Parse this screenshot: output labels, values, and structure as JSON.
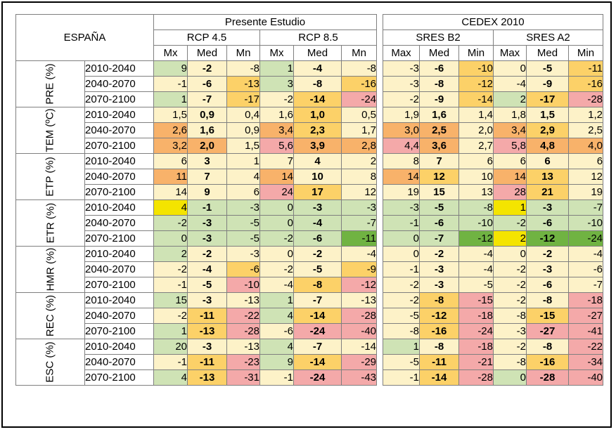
{
  "region_label": "ESPAÑA",
  "study_label": "Presente Estudio",
  "cedex_label": "CEDEX 2010",
  "scenarios_a": [
    "RCP 4.5",
    "RCP 8.5"
  ],
  "scenarios_b": [
    "SRES B2",
    "SRES A2"
  ],
  "subheaders_a": [
    "Mx",
    "Med",
    "Mn",
    "Mx",
    "Med",
    "Mn"
  ],
  "subheaders_b": [
    "Max",
    "Med",
    "Min",
    "Max",
    "Med",
    "Min"
  ],
  "groups": [
    {
      "label": "PRE (%)",
      "rows": [
        {
          "period": "2010-2040",
          "a": [
            "9",
            "-2",
            "-8",
            "1",
            "-4",
            "-8"
          ],
          "b": [
            "-3",
            "-6",
            "-10",
            "0",
            "-5",
            "-11"
          ]
        },
        {
          "period": "2040-2070",
          "a": [
            "-1",
            "-6",
            "-13",
            "3",
            "-8",
            "-16"
          ],
          "b": [
            "-3",
            "-8",
            "-12",
            "-4",
            "-9",
            "-16"
          ]
        },
        {
          "period": "2070-2100",
          "a": [
            "1",
            "-7",
            "-17",
            "-2",
            "-14",
            "-24"
          ],
          "b": [
            "-2",
            "-9",
            "-14",
            "2",
            "-17",
            "-28"
          ]
        }
      ]
    },
    {
      "label": "TEM (ºC)",
      "rows": [
        {
          "period": "2010-2040",
          "a": [
            "1,5",
            "0,9",
            "0,4",
            "1,6",
            "1,0",
            "0,5"
          ],
          "b": [
            "1,9",
            "1,6",
            "1,4",
            "1,8",
            "1,5",
            "1,2"
          ]
        },
        {
          "period": "2040-2070",
          "a": [
            "2,6",
            "1,6",
            "0,9",
            "3,4",
            "2,3",
            "1,7"
          ],
          "b": [
            "3,0",
            "2,5",
            "2,0",
            "3,4",
            "2,9",
            "2,5"
          ]
        },
        {
          "period": "2070-2100",
          "a": [
            "3,2",
            "2,0",
            "1,5",
            "5,6",
            "3,9",
            "2,8"
          ],
          "b": [
            "4,4",
            "3,6",
            "2,7",
            "5,8",
            "4,8",
            "4,0"
          ]
        }
      ]
    },
    {
      "label": "ETP (%)",
      "rows": [
        {
          "period": "2010-2040",
          "a": [
            "6",
            "3",
            "1",
            "7",
            "4",
            "2"
          ],
          "b": [
            "8",
            "7",
            "6",
            "6",
            "6",
            "6"
          ]
        },
        {
          "period": "2040-2070",
          "a": [
            "11",
            "7",
            "4",
            "14",
            "10",
            "8"
          ],
          "b": [
            "14",
            "12",
            "10",
            "14",
            "13",
            "12"
          ]
        },
        {
          "period": "2070-2100",
          "a": [
            "14",
            "9",
            "6",
            "24",
            "17",
            "12"
          ],
          "b": [
            "19",
            "15",
            "13",
            "28",
            "21",
            "19"
          ]
        }
      ]
    },
    {
      "label": "ETR (%)",
      "rows": [
        {
          "period": "2010-2040",
          "a": [
            "4",
            "-1",
            "-3",
            "0",
            "-3",
            "-3"
          ],
          "b": [
            "-3",
            "-5",
            "-8",
            "1",
            "-3",
            "-7"
          ]
        },
        {
          "period": "2040-2070",
          "a": [
            "-2",
            "-3",
            "-5",
            "0",
            "-4",
            "-7"
          ],
          "b": [
            "-1",
            "-6",
            "-10",
            "-2",
            "-6",
            "-10"
          ]
        },
        {
          "period": "2070-2100",
          "a": [
            "0",
            "-3",
            "-5",
            "-2",
            "-6",
            "-11"
          ],
          "b": [
            "0",
            "-7",
            "-12",
            "2",
            "-12",
            "-24"
          ]
        }
      ]
    },
    {
      "label": "HMR (%)",
      "rows": [
        {
          "period": "2010-2040",
          "a": [
            "2",
            "-2",
            "-3",
            "0",
            "-2",
            "-4"
          ],
          "b": [
            "0",
            "-2",
            "-4",
            "0",
            "-2",
            "-4"
          ]
        },
        {
          "period": "2040-2070",
          "a": [
            "-2",
            "-4",
            "-6",
            "-2",
            "-5",
            "-9"
          ],
          "b": [
            "-1",
            "-3",
            "-4",
            "-2",
            "-3",
            "-6"
          ]
        },
        {
          "period": "2070-2100",
          "a": [
            "-1",
            "-5",
            "-10",
            "-4",
            "-8",
            "-12"
          ],
          "b": [
            "-2",
            "-3",
            "-5",
            "-2",
            "-6",
            "-7"
          ]
        }
      ]
    },
    {
      "label": "REC (%)",
      "rows": [
        {
          "period": "2010-2040",
          "a": [
            "15",
            "-3",
            "-13",
            "1",
            "-7",
            "-13"
          ],
          "b": [
            "-2",
            "-8",
            "-15",
            "-2",
            "-8",
            "-18"
          ]
        },
        {
          "period": "2040-2070",
          "a": [
            "-2",
            "-11",
            "-22",
            "4",
            "-14",
            "-28"
          ],
          "b": [
            "-5",
            "-12",
            "-18",
            "-8",
            "-15",
            "-27"
          ]
        },
        {
          "period": "2070-2100",
          "a": [
            "1",
            "-13",
            "-28",
            "-6",
            "-24",
            "-40"
          ],
          "b": [
            "-8",
            "-16",
            "-24",
            "-3",
            "-27",
            "-41"
          ]
        }
      ]
    },
    {
      "label": "ESC (%)",
      "rows": [
        {
          "period": "2010-2040",
          "a": [
            "20",
            "-3",
            "-13",
            "4",
            "-7",
            "-14"
          ],
          "b": [
            "1",
            "-8",
            "-18",
            "-2",
            "-8",
            "-22"
          ]
        },
        {
          "period": "2040-2070",
          "a": [
            "-1",
            "-11",
            "-23",
            "9",
            "-14",
            "-29"
          ],
          "b": [
            "-5",
            "-11",
            "-21",
            "-8",
            "-16",
            "-34"
          ]
        },
        {
          "period": "2070-2100",
          "a": [
            "4",
            "-13",
            "-31",
            "-1",
            "-24",
            "-43"
          ],
          "b": [
            "-1",
            "-14",
            "-28",
            "0",
            "-28",
            "-40"
          ]
        }
      ]
    }
  ],
  "colors": {
    "wh": "#ffffff",
    "ly": "#fdf2c8",
    "lg": "#cfe3b5",
    "gr": "#a9d18e",
    "dg": "#70b342",
    "or": "#fcd168",
    "do": "#f8b26a",
    "pk": "#f4a9a9",
    "ye": "#f4e400"
  },
  "cell_colors_a": [
    [
      "lg",
      "ly",
      "ly",
      "lg",
      "ly",
      "ly"
    ],
    [
      "ly",
      "ly",
      "or",
      "lg",
      "ly",
      "or"
    ],
    [
      "lg",
      "ly",
      "or",
      "ly",
      "or",
      "pk"
    ],
    [
      "ly",
      "ly",
      "ly",
      "ly",
      "or",
      "ly"
    ],
    [
      "do",
      "ly",
      "ly",
      "do",
      "or",
      "ly"
    ],
    [
      "do",
      "do",
      "ly",
      "pk",
      "do",
      "do"
    ],
    [
      "ly",
      "ly",
      "ly",
      "ly",
      "ly",
      "ly"
    ],
    [
      "do",
      "ly",
      "ly",
      "do",
      "ly",
      "ly"
    ],
    [
      "ly",
      "ly",
      "ly",
      "pk",
      "or",
      "ly"
    ],
    [
      "ye",
      "lg",
      "lg",
      "lg",
      "lg",
      "lg"
    ],
    [
      "lg",
      "lg",
      "lg",
      "lg",
      "lg",
      "lg"
    ],
    [
      "lg",
      "lg",
      "lg",
      "lg",
      "lg",
      "dg"
    ],
    [
      "lg",
      "ly",
      "ly",
      "ly",
      "ly",
      "ly"
    ],
    [
      "ly",
      "ly",
      "or",
      "ly",
      "ly",
      "or"
    ],
    [
      "ly",
      "ly",
      "pk",
      "ly",
      "or",
      "pk"
    ],
    [
      "lg",
      "ly",
      "ly",
      "lg",
      "ly",
      "ly"
    ],
    [
      "ly",
      "or",
      "pk",
      "lg",
      "or",
      "pk"
    ],
    [
      "lg",
      "or",
      "pk",
      "ly",
      "pk",
      "pk"
    ],
    [
      "lg",
      "ly",
      "ly",
      "lg",
      "ly",
      "ly"
    ],
    [
      "ly",
      "or",
      "pk",
      "lg",
      "or",
      "pk"
    ],
    [
      "lg",
      "or",
      "pk",
      "ly",
      "pk",
      "pk"
    ]
  ],
  "cell_colors_b": [
    [
      "ly",
      "ly",
      "or",
      "ly",
      "ly",
      "or"
    ],
    [
      "ly",
      "ly",
      "or",
      "ly",
      "ly",
      "or"
    ],
    [
      "ly",
      "ly",
      "or",
      "lg",
      "or",
      "pk"
    ],
    [
      "ly",
      "ly",
      "ly",
      "ly",
      "ly",
      "ly"
    ],
    [
      "do",
      "do",
      "ly",
      "do",
      "or",
      "ly"
    ],
    [
      "pk",
      "do",
      "ly",
      "pk",
      "do",
      "do"
    ],
    [
      "ly",
      "ly",
      "ly",
      "ly",
      "ly",
      "ly"
    ],
    [
      "do",
      "or",
      "ly",
      "do",
      "or",
      "ly"
    ],
    [
      "ly",
      "ly",
      "ly",
      "pk",
      "or",
      "ly"
    ],
    [
      "lg",
      "lg",
      "lg",
      "ye",
      "lg",
      "lg"
    ],
    [
      "lg",
      "lg",
      "lg",
      "lg",
      "lg",
      "lg"
    ],
    [
      "lg",
      "lg",
      "dg",
      "ye",
      "dg",
      "dg"
    ],
    [
      "ly",
      "ly",
      "ly",
      "ly",
      "ly",
      "ly"
    ],
    [
      "ly",
      "ly",
      "ly",
      "ly",
      "ly",
      "ly"
    ],
    [
      "ly",
      "ly",
      "ly",
      "ly",
      "ly",
      "ly"
    ],
    [
      "ly",
      "or",
      "pk",
      "ly",
      "ly",
      "pk"
    ],
    [
      "ly",
      "or",
      "pk",
      "ly",
      "or",
      "pk"
    ],
    [
      "ly",
      "or",
      "pk",
      "ly",
      "pk",
      "pk"
    ],
    [
      "lg",
      "ly",
      "pk",
      "ly",
      "ly",
      "pk"
    ],
    [
      "ly",
      "or",
      "pk",
      "ly",
      "or",
      "pk"
    ],
    [
      "ly",
      "or",
      "pk",
      "lg",
      "pk",
      "pk"
    ]
  ]
}
